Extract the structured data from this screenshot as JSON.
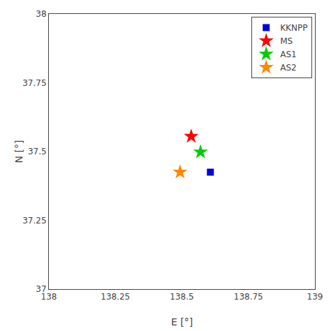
{
  "chart_data": {
    "type": "scatter",
    "xlabel": "E [°]",
    "ylabel": "N [°]",
    "series": [
      {
        "name": "KKNPP",
        "color": "#0000dd",
        "marker": "square",
        "x": [
          138.607
        ],
        "values": [
          37.425
        ]
      },
      {
        "name": "MS",
        "color": "#ff0000",
        "marker": "star",
        "x": [
          138.535
        ],
        "values": [
          37.555
        ]
      },
      {
        "name": "AS1",
        "color": "#00cc00",
        "marker": "star",
        "x": [
          138.57
        ],
        "values": [
          37.498
        ]
      },
      {
        "name": "AS2",
        "color": "#ff8800",
        "marker": "star",
        "x": [
          138.493
        ],
        "values": [
          37.425
        ]
      }
    ],
    "xlim": [
      138.0,
      139.0
    ],
    "ylim": [
      37.0,
      38.0
    ],
    "xticks": [
      138.0,
      138.25,
      138.5,
      138.75,
      139.0
    ],
    "yticks": [
      37.0,
      37.25,
      37.5,
      37.75,
      38.0
    ],
    "grid": false,
    "legend": "upper right"
  }
}
